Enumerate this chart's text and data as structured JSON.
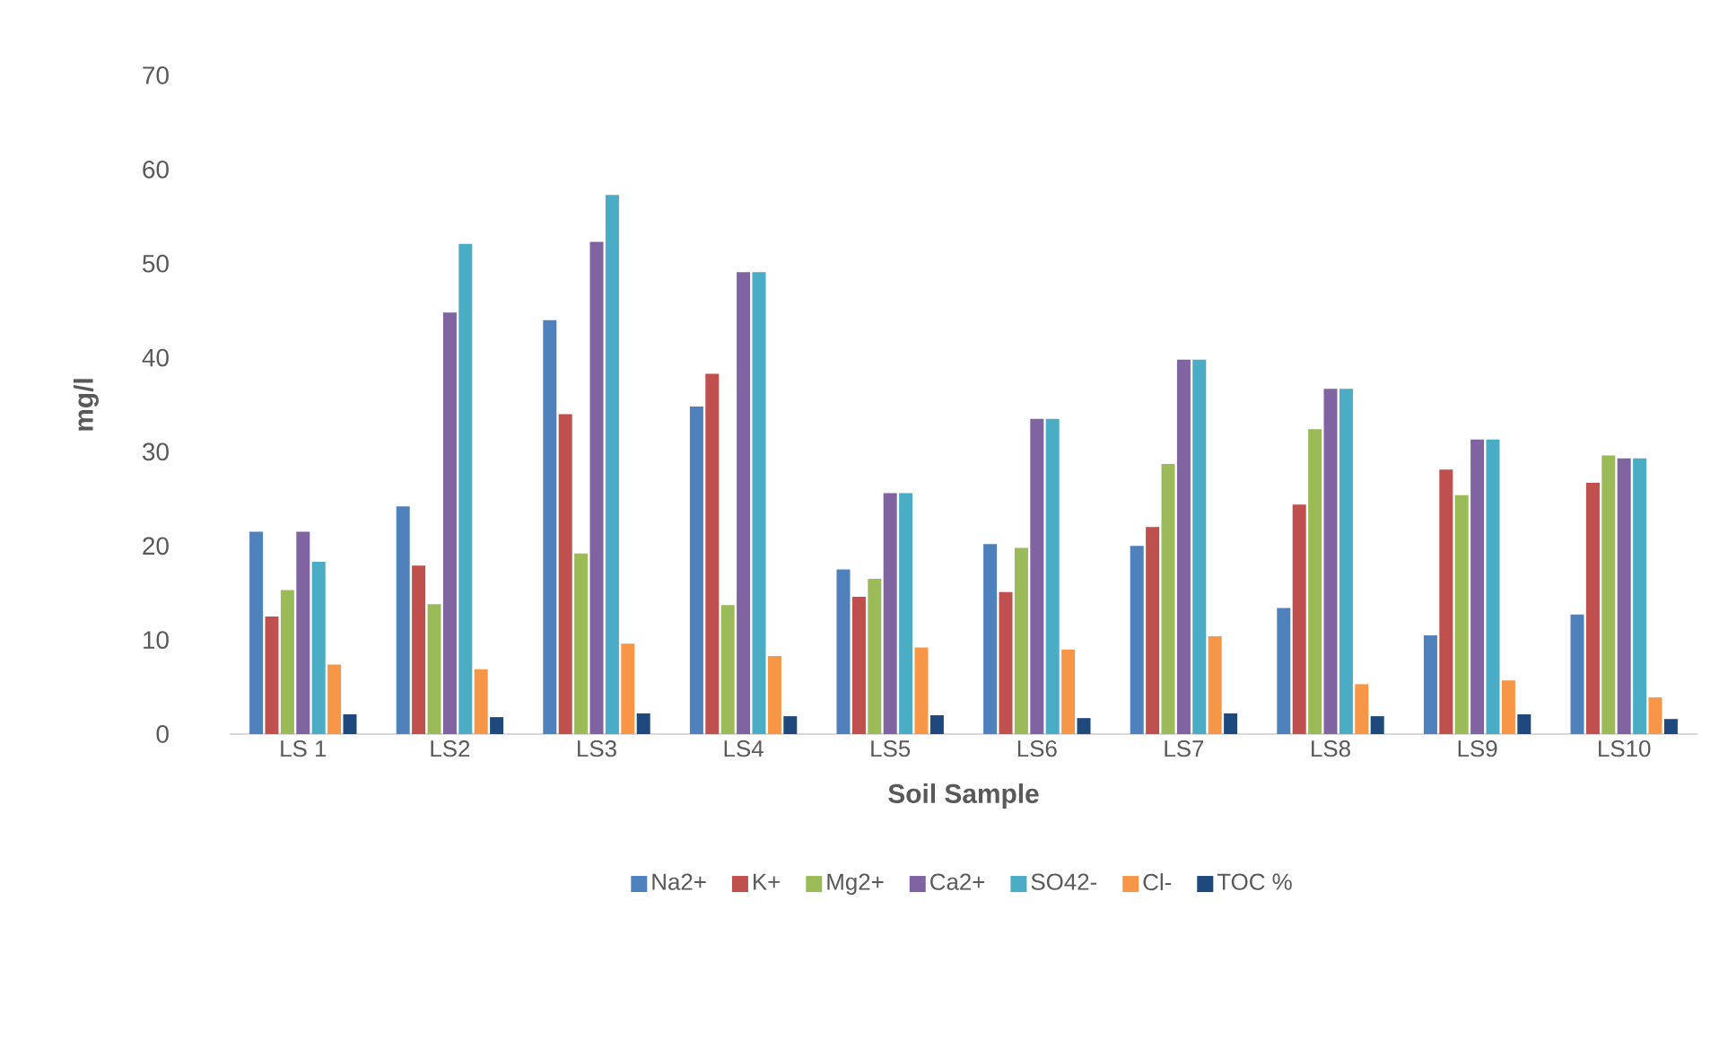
{
  "chart_data": {
    "type": "bar",
    "xlabel": "Soil Sample",
    "ylabel": "mg/l",
    "categories": [
      "LS 1",
      "LS2",
      "LS3",
      "LS4",
      "LS5",
      "LS6",
      "LS7",
      "LS8",
      "LS9",
      "LS10"
    ],
    "series": [
      {
        "name": "Na2+",
        "color": "#4f81bd",
        "values": [
          21.5,
          24.2,
          44,
          34.8,
          17.5,
          20.2,
          20,
          13.4,
          10.5,
          12.7
        ]
      },
      {
        "name": "K+",
        "color": "#c0504d",
        "values": [
          12.5,
          17.9,
          34,
          38.3,
          14.6,
          15.1,
          22,
          24.4,
          28.1,
          26.7
        ]
      },
      {
        "name": "Mg2+",
        "color": "#9bbb59",
        "values": [
          15.3,
          13.8,
          19.2,
          13.7,
          16.5,
          19.8,
          28.7,
          32.4,
          25.4,
          29.6
        ]
      },
      {
        "name": "Ca2+",
        "color": "#8064a2",
        "values": [
          21.5,
          44.8,
          52.3,
          49.1,
          25.6,
          33.5,
          39.8,
          36.7,
          31.3,
          29.3
        ]
      },
      {
        "name": "SO42-",
        "color": "#4bacc6",
        "values": [
          18.3,
          52.1,
          57.3,
          49.1,
          25.6,
          33.5,
          39.8,
          36.7,
          31.3,
          29.3
        ]
      },
      {
        "name": "Cl-",
        "color": "#f79646",
        "values": [
          7.4,
          6.9,
          9.6,
          8.3,
          9.2,
          9.0,
          10.4,
          5.3,
          5.7,
          3.9
        ]
      },
      {
        "name": "TOC %",
        "color": "#1f497d",
        "values": [
          2.1,
          1.8,
          2.2,
          1.9,
          2.0,
          1.7,
          2.2,
          1.9,
          2.1,
          1.6
        ]
      }
    ],
    "ylim": [
      0,
      70
    ],
    "yticks": [
      0,
      10,
      20,
      30,
      40,
      50,
      60,
      70
    ],
    "grid": false,
    "legend": "bottom"
  }
}
